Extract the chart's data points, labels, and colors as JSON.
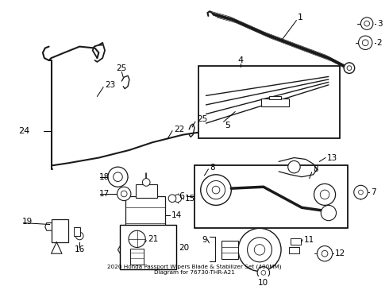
{
  "title": "2020 Honda Passport Wipers Blade & Stabilizer Set (400MM)\nDiagram for 76730-THR-A21",
  "bg_color": "#ffffff",
  "line_color": "#1a1a1a",
  "fig_width": 4.9,
  "fig_height": 3.6,
  "dpi": 100
}
